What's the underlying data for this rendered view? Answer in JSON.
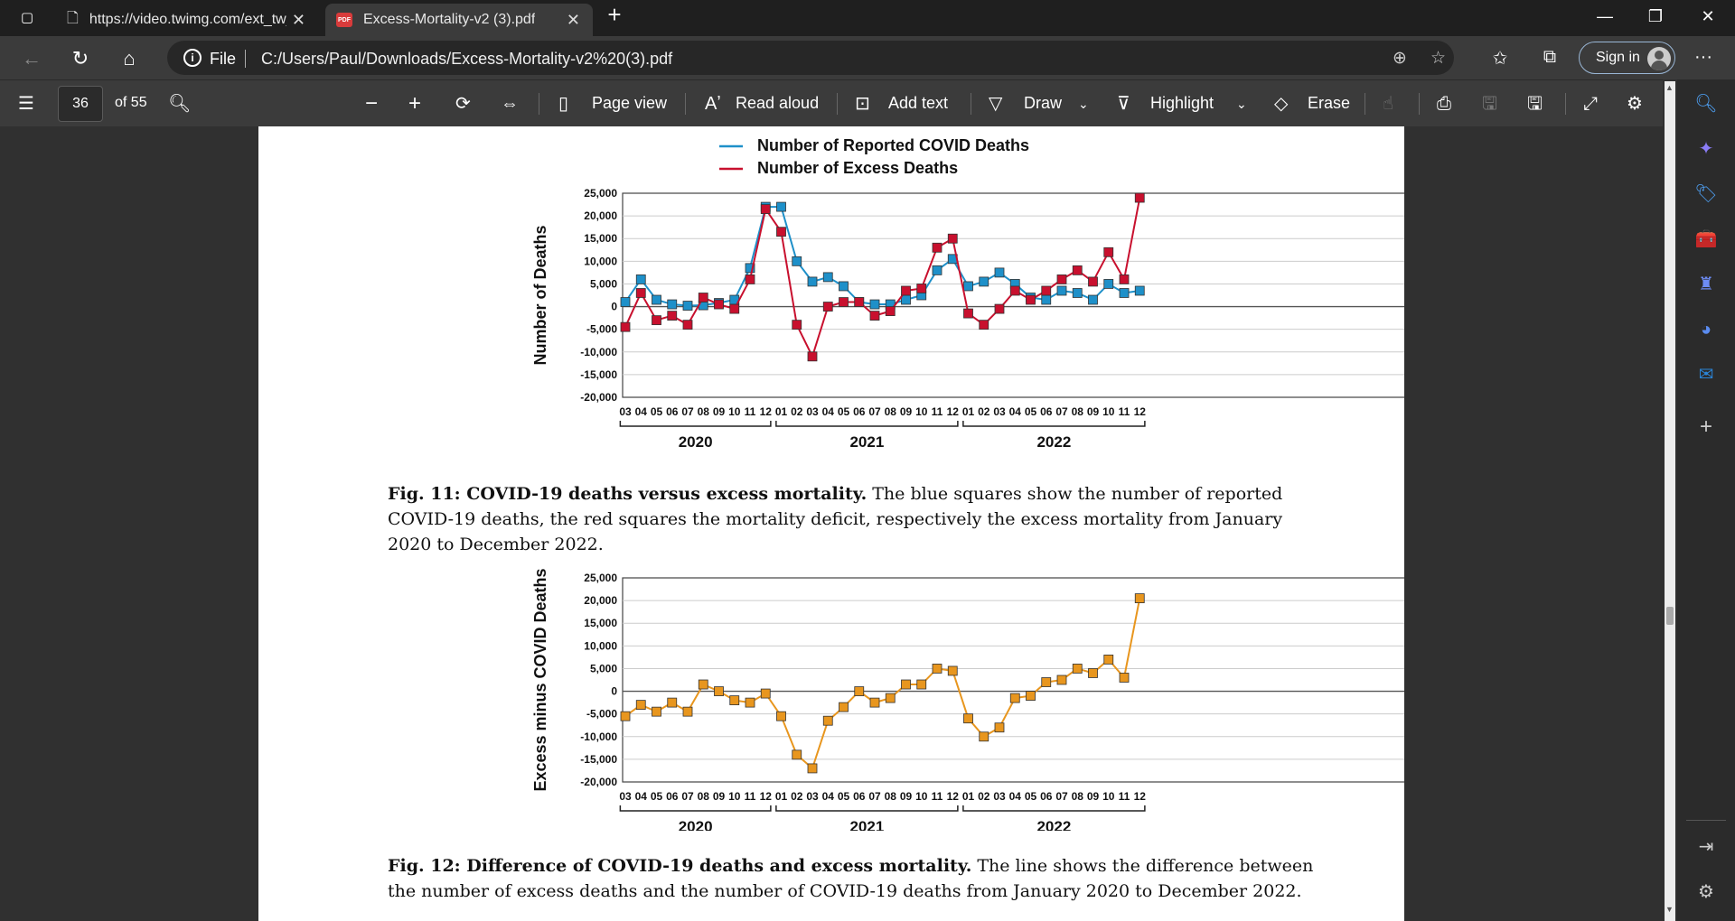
{
  "browser": {
    "tabs": [
      {
        "title": "https://video.twimg.com/ext_tw_",
        "close": "✕"
      },
      {
        "title": "Excess-Mortality-v2 (3).pdf",
        "close": "✕"
      }
    ],
    "new_tab": "+",
    "url_scheme": "File",
    "url": "C:/Users/Paul/Downloads/Excess-Mortality-v2%20(3).pdf",
    "sign_in": "Sign in"
  },
  "pdf_toolbar": {
    "page_current": "36",
    "page_total": "of 55",
    "page_view": "Page view",
    "read_aloud": "Read aloud",
    "add_text": "Add text",
    "draw": "Draw",
    "highlight": "Highlight",
    "erase": "Erase"
  },
  "colors": {
    "covid": "#1e90c9",
    "excess": "#c8102e",
    "diff": "#e8961e"
  },
  "figure11": {
    "caption_bold": "Fig. 11: COVID-19 deaths versus excess mortality.",
    "caption_text": " The blue squares show the number of reported COVID-19 deaths, the red squares the mortality deficit, respectively the excess mortality from January 2020 to December 2022."
  },
  "figure12": {
    "caption_bold": "Fig. 12: Difference of COVID-19 deaths and excess mortality.",
    "caption_text": " The line shows the difference between the number of excess deaths and the number of COVID-19 deaths from January 2020 to December 2022."
  },
  "chart_data": [
    {
      "type": "line",
      "ylabel": "Number of Deaths",
      "ylim": [
        -20000,
        25000
      ],
      "yticks": [
        "25,000",
        "20,000",
        "15,000",
        "10,000",
        "5,000",
        "0",
        "-5,000",
        "-10,000",
        "-15,000",
        "-20,000"
      ],
      "x_month_labels": [
        "03",
        "04",
        "05",
        "06",
        "07",
        "08",
        "09",
        "10",
        "11",
        "12",
        "01",
        "02",
        "03",
        "04",
        "05",
        "06",
        "07",
        "08",
        "09",
        "10",
        "11",
        "12",
        "01",
        "02",
        "03",
        "04",
        "05",
        "06",
        "07",
        "08",
        "09",
        "10",
        "11",
        "12"
      ],
      "x_year_groups": [
        "2020",
        "2021",
        "2022"
      ],
      "legend": [
        "Number of Reported COVID Deaths",
        "Number of Excess Deaths"
      ],
      "legend_placement": "top",
      "series": [
        {
          "name": "Number of Reported COVID Deaths",
          "values": [
            1000,
            6000,
            1500,
            500,
            200,
            300,
            800,
            1500,
            8500,
            22000,
            22000,
            10000,
            5500,
            6500,
            4500,
            1000,
            500,
            500,
            1500,
            2500,
            8000,
            10500,
            4500,
            5500,
            7500,
            5000,
            2000,
            1500,
            3500,
            3000,
            1500,
            5000,
            3000,
            3500
          ]
        },
        {
          "name": "Number of Excess Deaths",
          "values": [
            -4500,
            3000,
            -3000,
            -2000,
            -4000,
            2000,
            500,
            -500,
            6000,
            21500,
            16500,
            -4000,
            -11000,
            0,
            1000,
            1000,
            -2000,
            -1000,
            3500,
            4000,
            13000,
            15000,
            -1500,
            -4000,
            -500,
            3500,
            1500,
            3500,
            6000,
            8000,
            5500,
            12000,
            6000,
            24000
          ]
        }
      ]
    },
    {
      "type": "line",
      "ylabel": "Excess minus COVID Deaths",
      "ylim": [
        -20000,
        25000
      ],
      "yticks": [
        "25,000",
        "20,000",
        "15,000",
        "10,000",
        "5,000",
        "0",
        "-5,000",
        "-10,000",
        "-15,000",
        "-20,000"
      ],
      "x_month_labels": [
        "03",
        "04",
        "05",
        "06",
        "07",
        "08",
        "09",
        "10",
        "11",
        "12",
        "01",
        "02",
        "03",
        "04",
        "05",
        "06",
        "07",
        "08",
        "09",
        "10",
        "11",
        "12",
        "01",
        "02",
        "03",
        "04",
        "05",
        "06",
        "07",
        "08",
        "09",
        "10",
        "11",
        "12"
      ],
      "x_year_groups": [
        "2020",
        "2021",
        "2022"
      ],
      "series": [
        {
          "values": [
            -5500,
            -3000,
            -4500,
            -2500,
            -4500,
            1500,
            0,
            -2000,
            -2500,
            -500,
            -5500,
            -14000,
            -17000,
            -6500,
            -3500,
            0,
            -2500,
            -1500,
            1500,
            1500,
            5000,
            4500,
            -6000,
            -10000,
            -8000,
            -1500,
            -1000,
            2000,
            2500,
            5000,
            4000,
            7000,
            3000,
            20500
          ]
        }
      ]
    }
  ]
}
